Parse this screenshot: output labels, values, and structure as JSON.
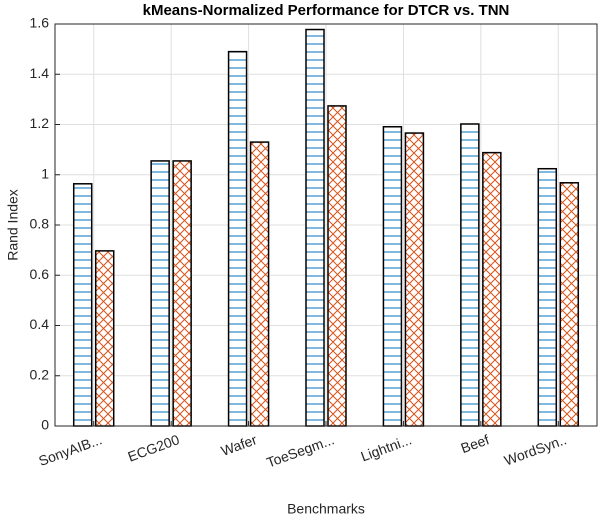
{
  "chart_data": {
    "type": "bar",
    "title": "kMeans-Normalized Performance for DTCR vs. TNN",
    "x_label": "Benchmarks",
    "y_label": "Rand Index",
    "categories": [
      "SonyAIB...",
      "ECG200",
      "Wafer",
      "ToeSegm...",
      "Lightni...",
      "Beef",
      "WordSyn.."
    ],
    "series": [
      {
        "color": "#0072bd",
        "hatch": "horizontal",
        "values": [
          0.964,
          1.055,
          1.49,
          1.578,
          1.191,
          1.202,
          1.024
        ]
      },
      {
        "color": "#d95319",
        "hatch": "cross",
        "values": [
          0.697,
          1.055,
          1.13,
          1.274,
          1.166,
          1.088,
          0.968
        ]
      }
    ],
    "ylim": [
      0,
      1.6
    ],
    "yticks": [
      0,
      0.2,
      0.4,
      0.6,
      0.8,
      1,
      1.2,
      1.4,
      1.6
    ],
    "grid": true
  }
}
